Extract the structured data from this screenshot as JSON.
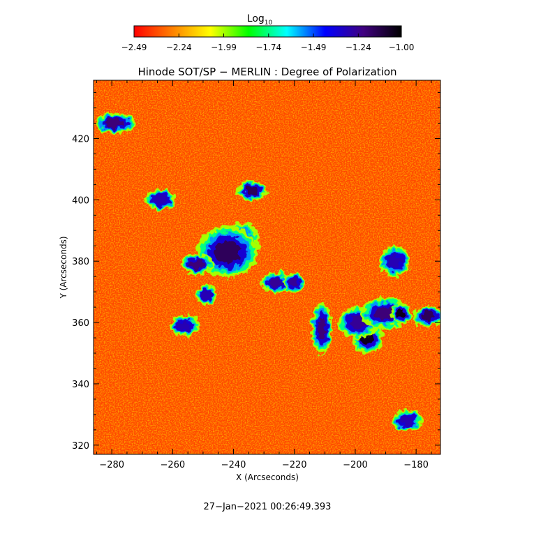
{
  "chart_data": {
    "type": "heatmap",
    "title": "Hinode SOT/SP − MERLIN : Degree of Polarization",
    "xlabel": "X (Arcseconds)",
    "ylabel": "Y (Arcseconds)",
    "xlim": [
      -286,
      -172
    ],
    "ylim": [
      317,
      439
    ],
    "x_ticks": [
      -280,
      -260,
      -240,
      -220,
      -200,
      -180
    ],
    "y_ticks": [
      320,
      340,
      360,
      380,
      400,
      420
    ],
    "x_tick_labels": [
      "−280",
      "−260",
      "−240",
      "−220",
      "−200",
      "−180"
    ],
    "y_tick_labels": [
      "320",
      "340",
      "360",
      "380",
      "400",
      "420"
    ],
    "colorbar": {
      "label_base": "Log",
      "label_sub": "10",
      "range": [
        -2.49,
        -1.0
      ],
      "ticks": [
        -2.49,
        -2.24,
        -1.99,
        -1.74,
        -1.49,
        -1.24,
        -1.0
      ],
      "tick_labels": [
        "−2.49",
        "−2.24",
        "−1.99",
        "−1.74",
        "−1.49",
        "−1.24",
        "−1.00"
      ],
      "colormap": [
        "#ff0000",
        "#ff8000",
        "#ffff00",
        "#00ff00",
        "#00ffff",
        "#0000ff",
        "#400080",
        "#000000"
      ]
    },
    "background_level": -2.37,
    "regions": [
      {
        "x": -237.5,
        "y": 386,
        "rx": 3.5,
        "ry": 4,
        "level": -1.0
      },
      {
        "x": -242,
        "y": 383,
        "rx": 6,
        "ry": 5,
        "level": -1.15
      },
      {
        "x": -252,
        "y": 379,
        "rx": 3,
        "ry": 2,
        "level": -1.2
      },
      {
        "x": -234,
        "y": 403,
        "rx": 3,
        "ry": 2,
        "level": -1.15
      },
      {
        "x": -226,
        "y": 373,
        "rx": 3,
        "ry": 2,
        "level": -1.25
      },
      {
        "x": -220,
        "y": 373,
        "rx": 2,
        "ry": 2,
        "level": -1.25
      },
      {
        "x": -211,
        "y": 358,
        "rx": 2,
        "ry": 5,
        "level": -1.2
      },
      {
        "x": -196,
        "y": 355,
        "rx": 3,
        "ry": 3,
        "level": -1.05
      },
      {
        "x": -199,
        "y": 360,
        "rx": 4,
        "ry": 3,
        "level": -1.25
      },
      {
        "x": -190,
        "y": 363,
        "rx": 5,
        "ry": 3,
        "level": -1.2
      },
      {
        "x": -185,
        "y": 363,
        "rx": 2,
        "ry": 2,
        "level": -1.05
      },
      {
        "x": -176,
        "y": 362,
        "rx": 3,
        "ry": 2,
        "level": -1.15
      },
      {
        "x": -187,
        "y": 380,
        "rx": 3,
        "ry": 3,
        "level": -1.3
      },
      {
        "x": -279,
        "y": 425,
        "rx": 4,
        "ry": 2,
        "level": -1.2
      },
      {
        "x": -264,
        "y": 400,
        "rx": 3,
        "ry": 2,
        "level": -1.3
      },
      {
        "x": -256,
        "y": 359,
        "rx": 3,
        "ry": 2,
        "level": -1.3
      },
      {
        "x": -249,
        "y": 369,
        "rx": 2,
        "ry": 2,
        "level": -1.3
      },
      {
        "x": -183,
        "y": 328,
        "rx": 3,
        "ry": 2,
        "level": -1.3
      }
    ],
    "grid": false,
    "legend": "colorbar-top"
  },
  "timestamp": "27−Jan−2021 00:26:49.393"
}
